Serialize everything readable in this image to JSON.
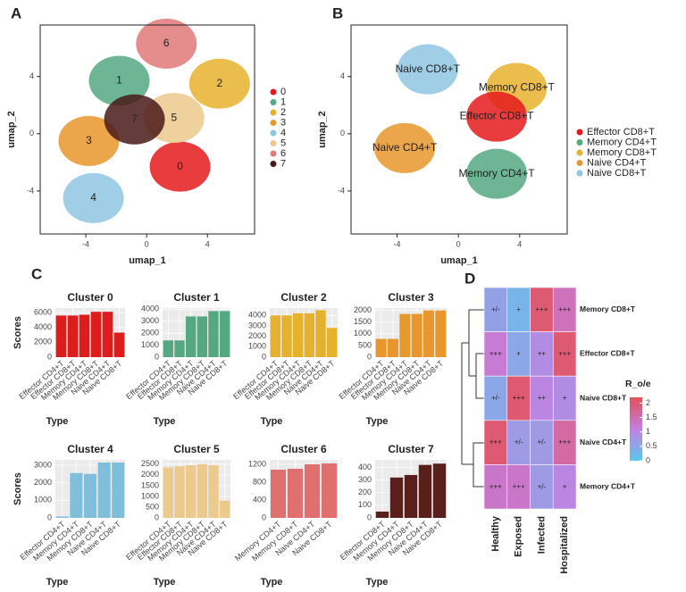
{
  "chart_data": [
    {
      "type": "scatter",
      "panel": "A",
      "xlabel": "umap_1",
      "ylabel": "umap_2",
      "xlim": [
        -7,
        7.1
      ],
      "ylim": [
        -7,
        7.6
      ],
      "xticks": [
        -4,
        0,
        4
      ],
      "yticks": [
        -4,
        0,
        4
      ],
      "series": [
        {
          "name": "0",
          "color": "#e41a1c"
        },
        {
          "name": "1",
          "color": "#55a882"
        },
        {
          "name": "2",
          "color": "#e6b22e"
        },
        {
          "name": "3",
          "color": "#e8972c"
        },
        {
          "name": "4",
          "color": "#8ec6e2"
        },
        {
          "name": "5",
          "color": "#ecc98c"
        },
        {
          "name": "6",
          "color": "#e07878"
        },
        {
          "name": "7",
          "color": "#4a1a1a"
        }
      ],
      "labels": [
        {
          "text": "0",
          "x": 2.2,
          "y": -2.3
        },
        {
          "text": "1",
          "x": -1.8,
          "y": 3.7
        },
        {
          "text": "2",
          "x": 4.8,
          "y": 3.5
        },
        {
          "text": "3",
          "x": -3.8,
          "y": -0.5
        },
        {
          "text": "4",
          "x": -3.5,
          "y": -4.5
        },
        {
          "text": "5",
          "x": 1.8,
          "y": 1.1
        },
        {
          "text": "6",
          "x": 1.3,
          "y": 6.3
        },
        {
          "text": "7",
          "x": -0.8,
          "y": 1.0
        }
      ]
    },
    {
      "type": "scatter",
      "panel": "B",
      "xlabel": "umap_1",
      "ylabel": "umap_2",
      "xlim": [
        -7,
        7.1
      ],
      "ylim": [
        -7,
        7.6
      ],
      "xticks": [
        -4,
        0,
        4
      ],
      "yticks": [
        -4,
        0,
        4
      ],
      "series": [
        {
          "name": "Effector CD8+T",
          "color": "#e41a1c"
        },
        {
          "name": "Memory CD4+T",
          "color": "#55a882"
        },
        {
          "name": "Memory CD8+T",
          "color": "#e6b22e"
        },
        {
          "name": "Naive CD4+T",
          "color": "#e8972c"
        },
        {
          "name": "Naive CD8+T",
          "color": "#8ec6e2"
        }
      ],
      "labels": [
        {
          "text": "Naive CD8+T",
          "x": -2.0,
          "y": 4.5
        },
        {
          "text": "Memory CD8+T",
          "x": 3.8,
          "y": 3.2
        },
        {
          "text": "Effector CD8+T",
          "x": 2.5,
          "y": 1.2
        },
        {
          "text": "Naive CD4+T",
          "x": -3.5,
          "y": -1.0
        },
        {
          "text": "Memory CD4+T",
          "x": 2.5,
          "y": -2.8
        }
      ]
    },
    {
      "type": "bar",
      "panel": "C",
      "title": "Cluster 0",
      "xlabel": "Type",
      "ylabel": "Scores",
      "color": "#dd1c1c",
      "categories": [
        "Effector CD4+T",
        "Effector CD8+T",
        "Memory CD4+T",
        "Memory CD8+T",
        "Naive CD4+T",
        "Naive CD8+T"
      ],
      "values": [
        5600,
        5600,
        5700,
        6100,
        6100,
        3300
      ],
      "ylim": [
        0,
        6600
      ],
      "yticks": [
        0,
        2000,
        4000,
        6000
      ]
    },
    {
      "type": "bar",
      "title": "Cluster 1",
      "xlabel": "Type",
      "color": "#55a882",
      "categories": [
        "Effector CD4+T",
        "Effector CD8+T",
        "Memory CD4+T",
        "Memory CD8+T",
        "Naive CD4+T",
        "Naive CD8+T"
      ],
      "values": [
        1400,
        1400,
        3400,
        3400,
        3850,
        3850
      ],
      "ylim": [
        0,
        4100
      ],
      "yticks": [
        0,
        1000,
        2000,
        3000,
        4000
      ]
    },
    {
      "type": "bar",
      "title": "Cluster 2",
      "xlabel": "Type",
      "color": "#e6b22e",
      "categories": [
        "Effector CD4+T",
        "Effector CD8+T",
        "Memory CD4+T",
        "Memory CD8+T",
        "Naive CD4+T",
        "Naive CD8+T"
      ],
      "values": [
        4000,
        4000,
        4200,
        4200,
        4500,
        2800
      ],
      "ylim": [
        0,
        4700
      ],
      "yticks": [
        0,
        1000,
        2000,
        3000,
        4000
      ]
    },
    {
      "type": "bar",
      "title": "Cluster 3",
      "xlabel": "Type",
      "color": "#e8972c",
      "categories": [
        "Effector CD4+T",
        "Effector CD8+T",
        "Memory CD4+T",
        "Memory CD8+T",
        "Naive CD4+T",
        "Naive CD8+T"
      ],
      "values": [
        780,
        780,
        1850,
        1850,
        2000,
        2000
      ],
      "ylim": [
        0,
        2100
      ],
      "yticks": [
        0,
        500,
        1000,
        1500,
        2000
      ]
    },
    {
      "type": "bar",
      "title": "Cluster 4",
      "xlabel": "Type",
      "ylabel": "Scores",
      "color": "#7fbfdc",
      "categories": [
        "Effector CD4+T",
        "Memory CD4+T",
        "Memory CD8+T",
        "Naive CD4+T",
        "Naive CD8+T"
      ],
      "values": [
        80,
        2550,
        2500,
        3150,
        3150
      ],
      "ylim": [
        0,
        3300
      ],
      "yticks": [
        0,
        1000,
        2000,
        3000
      ]
    },
    {
      "type": "bar",
      "title": "Cluster 5",
      "xlabel": "Type",
      "color": "#ecc98c",
      "categories": [
        "Effector CD4+T",
        "Effector CD8+T",
        "Memory CD4+T",
        "Memory CD8+T",
        "Naive CD4+T",
        "Naive CD8+T"
      ],
      "values": [
        2350,
        2400,
        2450,
        2500,
        2450,
        800
      ],
      "ylim": [
        0,
        2700
      ],
      "yticks": [
        0,
        500,
        1000,
        1500,
        2000,
        2500
      ]
    },
    {
      "type": "bar",
      "title": "Cluster 6",
      "xlabel": "Type",
      "color": "#e07070",
      "categories": [
        "Memory CD4+T",
        "Memory CD8+T",
        "Naive CD4+T",
        "Naive CD8+T"
      ],
      "values": [
        1080,
        1100,
        1200,
        1220
      ],
      "ylim": [
        0,
        1300
      ],
      "yticks": [
        0,
        400,
        800,
        1200
      ]
    },
    {
      "type": "bar",
      "title": "Cluster 7",
      "xlabel": "Type",
      "color": "#5a1f1a",
      "categories": [
        "Effector CD8+T",
        "Memory CD4+T",
        "Memory CD8+T",
        "Naive CD4+T",
        "Naive CD8+T"
      ],
      "values": [
        50,
        320,
        340,
        420,
        430
      ],
      "ylim": [
        0,
        460
      ],
      "yticks": [
        0,
        100,
        200,
        300,
        400
      ]
    },
    {
      "type": "heatmap",
      "panel": "D",
      "rows": [
        "Memory CD8+T",
        "Effector CD8+T",
        "Naive CD8+T",
        "Naive CD4+T",
        "Memory CD4+T"
      ],
      "columns": [
        "Healthy",
        "Exposed",
        "Infected",
        "Hospitalized"
      ],
      "values": [
        [
          0.6,
          0.3,
          2.0,
          1.4
        ],
        [
          1.2,
          0.5,
          0.9,
          2.0
        ],
        [
          0.5,
          2.0,
          1.0,
          0.9
        ],
        [
          2.0,
          0.7,
          0.7,
          1.6
        ],
        [
          1.3,
          1.3,
          0.7,
          1.0
        ]
      ],
      "value_labels": [
        [
          "+/-",
          "+",
          "+++",
          "+++"
        ],
        [
          "+++",
          "+",
          "++",
          "+++"
        ],
        [
          "+/-",
          "+++",
          "++",
          "+"
        ],
        [
          "+++",
          "+/-",
          "+/-",
          "+++"
        ],
        [
          "+++",
          "+++",
          "+/-",
          "+"
        ]
      ],
      "colorbar_title": "R_o/e",
      "clim": [
        0,
        2.2
      ],
      "cticks": [
        0,
        0.5,
        1,
        1.5,
        2
      ],
      "colormap": [
        "#5bc8ec",
        "#c47fe0",
        "#e4505a"
      ]
    }
  ]
}
